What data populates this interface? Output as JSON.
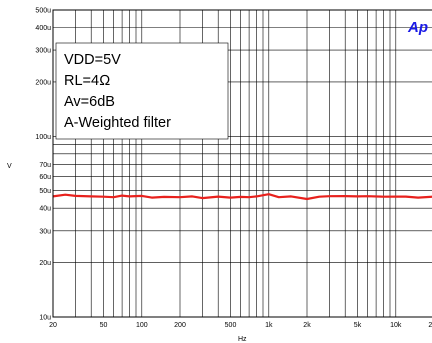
{
  "chart_data": {
    "type": "line",
    "x_scale": "log",
    "y_scale": "log",
    "xlabel": "Hz",
    "ylabel": "V",
    "xlim": [
      20,
      20000
    ],
    "ylim": [
      10,
      500
    ],
    "x_ticks": [
      {
        "value": 20,
        "label": "20"
      },
      {
        "value": 50,
        "label": "50"
      },
      {
        "value": 100,
        "label": "100"
      },
      {
        "value": 200,
        "label": "200"
      },
      {
        "value": 500,
        "label": "500"
      },
      {
        "value": 1000,
        "label": "1k"
      },
      {
        "value": 2000,
        "label": "2k"
      },
      {
        "value": 5000,
        "label": "5k"
      },
      {
        "value": 10000,
        "label": "10k"
      },
      {
        "value": 20000,
        "label": "20k"
      }
    ],
    "y_ticks": [
      {
        "value": 10,
        "label": "10u"
      },
      {
        "value": 20,
        "label": "20u"
      },
      {
        "value": 30,
        "label": "30u"
      },
      {
        "value": 40,
        "label": "40u"
      },
      {
        "value": 50,
        "label": "50u"
      },
      {
        "value": 60,
        "label": "60u"
      },
      {
        "value": 70,
        "label": "70u"
      },
      {
        "value": 100,
        "label": "100u"
      },
      {
        "value": 200,
        "label": "200u"
      },
      {
        "value": 300,
        "label": "300u"
      },
      {
        "value": 400,
        "label": "400u"
      },
      {
        "value": 500,
        "label": "500u"
      }
    ],
    "grid": true,
    "series": [
      {
        "color": "#e8211d",
        "x": [
          20,
          25,
          30,
          40,
          50,
          60,
          70,
          80,
          100,
          120,
          150,
          200,
          250,
          300,
          400,
          500,
          600,
          700,
          800,
          1000,
          1200,
          1500,
          2000,
          2500,
          3000,
          4000,
          5000,
          6000,
          8000,
          10000,
          12000,
          15000,
          20000
        ],
        "y": [
          46.5,
          47.5,
          46.8,
          46.5,
          46.3,
          46,
          47,
          46.5,
          46.8,
          45.8,
          46.2,
          46,
          46.5,
          45.5,
          46.4,
          45.8,
          46.2,
          46,
          46.5,
          47.8,
          46,
          46.5,
          45,
          46.3,
          46.6,
          46.7,
          46.5,
          46.6,
          46.3,
          46.4,
          46.4,
          45.8,
          46.4
        ]
      }
    ],
    "legend_lines": [
      "VDD=5V",
      "RL=4Ω",
      "Av=6dB",
      "A-Weighted filter"
    ]
  },
  "brand_text": "Ap"
}
